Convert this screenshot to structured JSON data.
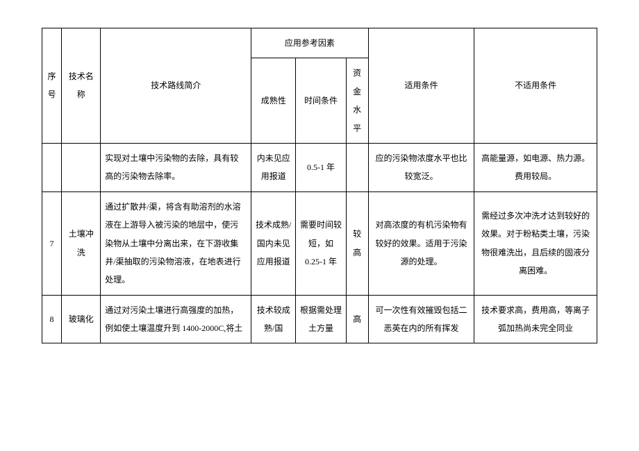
{
  "table": {
    "headers": {
      "seq": "序号",
      "name": "技术名称",
      "desc": "技术路线简介",
      "group": "应用参考因素",
      "maturity": "成熟性",
      "time": "时间条件",
      "fund": "资金水平",
      "apply": "适用条件",
      "noapply": "不适用条件"
    },
    "rows": [
      {
        "seq": "",
        "name": "",
        "desc": "实现对土壤中污染物的去除，具有较高的污染物去除率。",
        "maturity": "内未见应用报道",
        "time": "0.5-1 年",
        "fund": "",
        "apply": "应的污染物浓度水平也比较宽泛。",
        "noapply": "高能量源，如电源、热力源。费用较局。"
      },
      {
        "seq": "7",
        "name": "土壤冲洗",
        "desc": "通过扩散井/渠，将含有助溶剂的水溶液在上游导入被污染的地层中，使污染物从土壤中分离出来，在下游收集井/渠抽取的污染物溶液，在地表进行处理。",
        "maturity": "技术成熟/国内未见应用报道",
        "time": "需要时间较短，如 0.25-1 年",
        "fund": "较高",
        "apply": "对高浓度的有机污染物有较好的效果。适用于污染源的处理。",
        "noapply": "需经过多次冲洗才达到较好的效果。对于粉粘类土壤，污染物很难洗出，且后续的固液分离困难。"
      },
      {
        "seq": "8",
        "name": "玻璃化",
        "desc": "通过对污染土壤进行高强度的加热，例如使土壤温度升到 1400-2000C,将土",
        "maturity": "技术较成熟/国",
        "time": "根据需处理土方量",
        "fund": "高",
        "apply": "可一次性有效摧毁包括二恶英在内的所有挥发",
        "noapply": "技术要求高，费用高，等离子弧加热尚未完全同业"
      }
    ],
    "styling": {
      "border_color": "#000000",
      "background_color": "#ffffff",
      "font_size": 12,
      "line_height": 2.2,
      "cell_align": "center"
    }
  }
}
